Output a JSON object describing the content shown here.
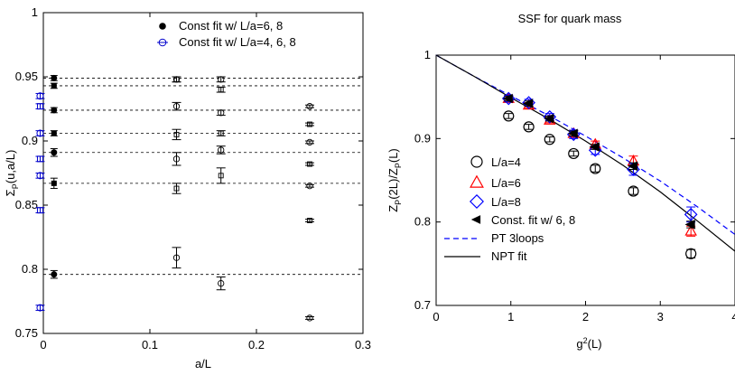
{
  "chart_data": [
    {
      "type": "scatter",
      "title": "",
      "xlabel": "a/L",
      "ylabel": "Σ_P(u,a/L)",
      "ylabel_parts": {
        "main": "Σ",
        "sub": "P",
        "rest": "(u,a/L)"
      },
      "xlim": [
        0,
        0.3
      ],
      "ylim": [
        0.75,
        1.0
      ],
      "xticks": [
        0,
        0.1,
        0.2,
        0.3
      ],
      "xtick_labels": [
        "0",
        "0.1",
        "0.2",
        "0.3"
      ],
      "yticks": [
        0.75,
        0.8,
        0.85,
        0.9,
        0.95,
        1.0
      ],
      "ytick_labels": [
        "0.75",
        "0.8",
        "0.85",
        "0.9",
        "0.95",
        "1"
      ],
      "grid": false,
      "legend_position": "top-right",
      "legend": [
        {
          "label": "Const fit w/ L/a=6, 8",
          "marker": "filled-circle",
          "color": "#000000"
        },
        {
          "label": "Const fit w/ L/a=4, 6, 8",
          "marker": "open-circle",
          "color": "#0000cc"
        }
      ],
      "reference_lines": [
        0.949,
        0.943,
        0.924,
        0.906,
        0.891,
        0.867,
        0.796
      ],
      "const_fit_6_8": [
        {
          "x": 0.01,
          "y": 0.949,
          "err": 0.002,
          "marker": "circle"
        },
        {
          "x": 0.01,
          "y": 0.943,
          "err": 0.002,
          "marker": "square"
        },
        {
          "x": 0.01,
          "y": 0.924,
          "err": 0.002,
          "marker": "circle"
        },
        {
          "x": 0.01,
          "y": 0.906,
          "err": 0.002,
          "marker": "square"
        },
        {
          "x": 0.01,
          "y": 0.891,
          "err": 0.003,
          "marker": "circle"
        },
        {
          "x": 0.01,
          "y": 0.867,
          "err": 0.004,
          "marker": "square"
        },
        {
          "x": 0.01,
          "y": 0.796,
          "err": 0.003,
          "marker": "circle"
        }
      ],
      "const_fit_4_6_8": [
        {
          "x": -0.003,
          "y": 0.935,
          "err": 0.002,
          "marker": "circle"
        },
        {
          "x": -0.003,
          "y": 0.927,
          "err": 0.002,
          "marker": "square"
        },
        {
          "x": -0.003,
          "y": 0.906,
          "err": 0.002,
          "marker": "circle"
        },
        {
          "x": -0.003,
          "y": 0.886,
          "err": 0.002,
          "marker": "square"
        },
        {
          "x": -0.003,
          "y": 0.873,
          "err": 0.002,
          "marker": "circle"
        },
        {
          "x": -0.003,
          "y": 0.846,
          "err": 0.002,
          "marker": "square"
        },
        {
          "x": -0.003,
          "y": 0.77,
          "err": 0.002,
          "marker": "circle"
        }
      ],
      "lattice_points": [
        {
          "x": 0.125,
          "y": 0.948,
          "err": 0.002,
          "marker": "circle"
        },
        {
          "x": 0.125,
          "y": 0.948,
          "err": 0.002,
          "marker": "square"
        },
        {
          "x": 0.125,
          "y": 0.927,
          "err": 0.003,
          "marker": "circle"
        },
        {
          "x": 0.125,
          "y": 0.905,
          "err": 0.004,
          "marker": "square"
        },
        {
          "x": 0.125,
          "y": 0.886,
          "err": 0.005,
          "marker": "circle"
        },
        {
          "x": 0.125,
          "y": 0.863,
          "err": 0.004,
          "marker": "square"
        },
        {
          "x": 0.125,
          "y": 0.809,
          "err": 0.008,
          "marker": "circle"
        },
        {
          "x": 0.1667,
          "y": 0.948,
          "err": 0.002,
          "marker": "circle"
        },
        {
          "x": 0.1667,
          "y": 0.94,
          "err": 0.002,
          "marker": "square"
        },
        {
          "x": 0.1667,
          "y": 0.922,
          "err": 0.002,
          "marker": "circle"
        },
        {
          "x": 0.1667,
          "y": 0.906,
          "err": 0.002,
          "marker": "square"
        },
        {
          "x": 0.1667,
          "y": 0.893,
          "err": 0.003,
          "marker": "circle"
        },
        {
          "x": 0.1667,
          "y": 0.873,
          "err": 0.006,
          "marker": "square"
        },
        {
          "x": 0.1667,
          "y": 0.789,
          "err": 0.005,
          "marker": "circle"
        },
        {
          "x": 0.25,
          "y": 0.927,
          "err": 0.001,
          "marker": "circle"
        },
        {
          "x": 0.25,
          "y": 0.913,
          "err": 0.001,
          "marker": "square"
        },
        {
          "x": 0.25,
          "y": 0.899,
          "err": 0.001,
          "marker": "circle"
        },
        {
          "x": 0.25,
          "y": 0.882,
          "err": 0.001,
          "marker": "square"
        },
        {
          "x": 0.25,
          "y": 0.865,
          "err": 0.001,
          "marker": "circle"
        },
        {
          "x": 0.25,
          "y": 0.838,
          "err": 0.001,
          "marker": "square"
        },
        {
          "x": 0.25,
          "y": 0.762,
          "err": 0.001,
          "marker": "circle"
        }
      ]
    },
    {
      "type": "scatter",
      "title": "SSF for quark mass",
      "xlabel": "g²(L)",
      "xlabel_parts": {
        "main": "g",
        "sup": "2",
        "rest": "(L)"
      },
      "ylabel": "Z_P(2L)/Z_P(L)",
      "ylabel_parts": [
        "Z",
        "P",
        "(2L)/Z",
        "P",
        "(L)"
      ],
      "xlim": [
        0,
        4
      ],
      "ylim": [
        0.7,
        1.0
      ],
      "xticks": [
        0,
        1,
        2,
        3,
        4
      ],
      "xtick_labels": [
        "0",
        "1",
        "2",
        "3",
        "4"
      ],
      "yticks": [
        0.7,
        0.8,
        0.9,
        1.0
      ],
      "ytick_labels": [
        "0.7",
        "0.8",
        "0.9",
        "1"
      ],
      "grid": false,
      "legend_position": "bottom-left",
      "legend": [
        {
          "label": "L/a=4",
          "marker": "open-circle",
          "color": "#000000"
        },
        {
          "label": "L/a=6",
          "marker": "open-triangle",
          "color": "#ff0000"
        },
        {
          "label": "L/a=8",
          "marker": "open-diamond",
          "color": "#0000ff"
        },
        {
          "label": "Const. fit w/ 6, 8",
          "marker": "filled-left-triangle",
          "color": "#000000"
        },
        {
          "label": "PT 3loops",
          "marker": "dashed-line",
          "color": "#0000ff"
        },
        {
          "label": "NPT fit",
          "marker": "solid-line",
          "color": "#000000"
        }
      ],
      "series": [
        {
          "name": "L/a=4",
          "color": "#000000",
          "marker": "circle",
          "x": [
            0.97,
            1.24,
            1.52,
            1.84,
            2.13,
            2.64,
            3.41
          ],
          "y": [
            0.927,
            0.914,
            0.899,
            0.882,
            0.864,
            0.837,
            0.762
          ],
          "err": [
            0.003,
            0.003,
            0.003,
            0.003,
            0.004,
            0.004,
            0.005
          ]
        },
        {
          "name": "L/a=6",
          "color": "#ff0000",
          "marker": "triangle",
          "x": [
            0.97,
            1.24,
            1.52,
            1.84,
            2.13,
            2.64,
            3.41
          ],
          "y": [
            0.948,
            0.94,
            0.922,
            0.906,
            0.893,
            0.873,
            0.789
          ],
          "err": [
            0.003,
            0.003,
            0.003,
            0.004,
            0.004,
            0.006,
            0.006
          ]
        },
        {
          "name": "L/a=8",
          "color": "#0000ff",
          "marker": "diamond",
          "x": [
            0.97,
            1.24,
            1.52,
            1.84,
            2.13,
            2.64,
            3.41
          ],
          "y": [
            0.948,
            0.943,
            0.926,
            0.905,
            0.886,
            0.863,
            0.809
          ],
          "err": [
            0.004,
            0.004,
            0.004,
            0.005,
            0.005,
            0.007,
            0.009
          ]
        },
        {
          "name": "Const. fit w/ 6, 8",
          "color": "#000000",
          "marker": "left-triangle",
          "x": [
            0.97,
            1.24,
            1.52,
            1.84,
            2.13,
            2.64,
            3.41
          ],
          "y": [
            0.948,
            0.942,
            0.924,
            0.906,
            0.89,
            0.867,
            0.797
          ],
          "err": [
            0.003,
            0.003,
            0.003,
            0.003,
            0.003,
            0.004,
            0.004
          ]
        },
        {
          "name": "PT 3loops",
          "color": "#0000ff",
          "style": "dashed",
          "x": [
            0,
            0.5,
            1,
            1.5,
            2,
            2.5,
            3,
            3.5,
            4
          ],
          "y": [
            1.0,
            0.975,
            0.951,
            0.928,
            0.903,
            0.877,
            0.849,
            0.818,
            0.785
          ]
        },
        {
          "name": "NPT fit",
          "color": "#000000",
          "style": "solid",
          "x": [
            0,
            0.5,
            1,
            1.5,
            2,
            2.5,
            3,
            3.5,
            4
          ],
          "y": [
            1.0,
            0.975,
            0.949,
            0.924,
            0.897,
            0.868,
            0.836,
            0.801,
            0.765
          ]
        }
      ]
    }
  ]
}
